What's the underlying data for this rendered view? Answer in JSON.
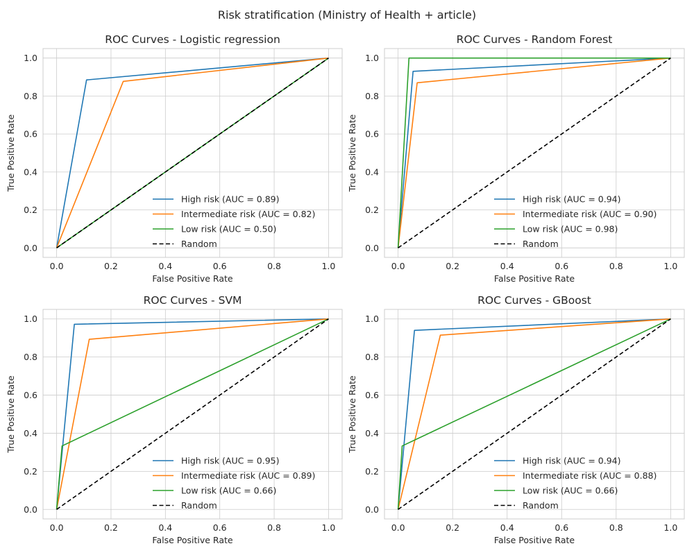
{
  "figure": {
    "suptitle": "Risk stratification (Ministry of Health + article)"
  },
  "colors": {
    "high": "#1f77b4",
    "intermediate": "#ff7f0e",
    "low": "#2ca02c",
    "random": "#000000",
    "grid": "#cccccc",
    "frame": "#cccccc"
  },
  "chart_data": [
    {
      "type": "line",
      "title": "ROC Curves - Logistic regression",
      "xlabel": "False Positive Rate",
      "ylabel": "True Positive Rate",
      "xlim": [
        -0.05,
        1.05
      ],
      "ylim": [
        -0.05,
        1.05
      ],
      "xticks": [
        "0.0",
        "0.2",
        "0.4",
        "0.6",
        "0.8",
        "1.0"
      ],
      "yticks": [
        "0.0",
        "0.2",
        "0.4",
        "0.6",
        "0.8",
        "1.0"
      ],
      "grid": true,
      "legend": "lower right",
      "series": [
        {
          "name": "High risk (AUC = 0.89)",
          "color": "#1f77b4",
          "dash": false,
          "x": [
            0,
            0.11,
            1
          ],
          "y": [
            0,
            0.885,
            1
          ]
        },
        {
          "name": "Intermediate risk (AUC = 0.82)",
          "color": "#ff7f0e",
          "dash": false,
          "x": [
            0,
            0.245,
            1
          ],
          "y": [
            0,
            0.877,
            1
          ]
        },
        {
          "name": "Low risk (AUC = 0.50)",
          "color": "#2ca02c",
          "dash": false,
          "x": [
            0,
            1
          ],
          "y": [
            0,
            1
          ]
        },
        {
          "name": "Random",
          "color": "#000000",
          "dash": true,
          "x": [
            0,
            1
          ],
          "y": [
            0,
            1
          ]
        }
      ]
    },
    {
      "type": "line",
      "title": "ROC Curves - Random Forest",
      "xlabel": "False Positive Rate",
      "ylabel": "True Positive Rate",
      "xlim": [
        -0.05,
        1.05
      ],
      "ylim": [
        -0.05,
        1.05
      ],
      "xticks": [
        "0.0",
        "0.2",
        "0.4",
        "0.6",
        "0.8",
        "1.0"
      ],
      "yticks": [
        "0.0",
        "0.2",
        "0.4",
        "0.6",
        "0.8",
        "1.0"
      ],
      "grid": true,
      "legend": "lower right",
      "series": [
        {
          "name": "High risk (AUC = 0.94)",
          "color": "#1f77b4",
          "dash": false,
          "x": [
            0,
            0.055,
            1
          ],
          "y": [
            0,
            0.93,
            1
          ]
        },
        {
          "name": "Intermediate risk (AUC = 0.90)",
          "color": "#ff7f0e",
          "dash": false,
          "x": [
            0,
            0.07,
            1
          ],
          "y": [
            0,
            0.87,
            1
          ]
        },
        {
          "name": "Low risk (AUC = 0.98)",
          "color": "#2ca02c",
          "dash": false,
          "x": [
            0,
            0.04,
            1
          ],
          "y": [
            0,
            1.0,
            1
          ]
        },
        {
          "name": "Random",
          "color": "#000000",
          "dash": true,
          "x": [
            0,
            1
          ],
          "y": [
            0,
            1
          ]
        }
      ]
    },
    {
      "type": "line",
      "title": "ROC Curves - SVM",
      "xlabel": "False Positive Rate",
      "ylabel": "True Positive Rate",
      "xlim": [
        -0.05,
        1.05
      ],
      "ylim": [
        -0.05,
        1.05
      ],
      "xticks": [
        "0.0",
        "0.2",
        "0.4",
        "0.6",
        "0.8",
        "1.0"
      ],
      "yticks": [
        "0.0",
        "0.2",
        "0.4",
        "0.6",
        "0.8",
        "1.0"
      ],
      "grid": true,
      "legend": "lower right",
      "series": [
        {
          "name": "High risk (AUC = 0.95)",
          "color": "#1f77b4",
          "dash": false,
          "x": [
            0,
            0.065,
            1
          ],
          "y": [
            0,
            0.972,
            1
          ]
        },
        {
          "name": "Intermediate risk (AUC = 0.89)",
          "color": "#ff7f0e",
          "dash": false,
          "x": [
            0,
            0.12,
            1
          ],
          "y": [
            0,
            0.893,
            1
          ]
        },
        {
          "name": "Low risk (AUC = 0.66)",
          "color": "#2ca02c",
          "dash": false,
          "x": [
            0,
            0.02,
            1
          ],
          "y": [
            0,
            0.333,
            1
          ]
        },
        {
          "name": "Random",
          "color": "#000000",
          "dash": true,
          "x": [
            0,
            1
          ],
          "y": [
            0,
            1
          ]
        }
      ]
    },
    {
      "type": "line",
      "title": "ROC Curves - GBoost",
      "xlabel": "False Positive Rate",
      "ylabel": "True Positive Rate",
      "xlim": [
        -0.05,
        1.05
      ],
      "ylim": [
        -0.05,
        1.05
      ],
      "xticks": [
        "0.0",
        "0.2",
        "0.4",
        "0.6",
        "0.8",
        "1.0"
      ],
      "yticks": [
        "0.0",
        "0.2",
        "0.4",
        "0.6",
        "0.8",
        "1.0"
      ],
      "grid": true,
      "legend": "lower right",
      "series": [
        {
          "name": "High risk (AUC = 0.94)",
          "color": "#1f77b4",
          "dash": false,
          "x": [
            0,
            0.06,
            1
          ],
          "y": [
            0,
            0.94,
            1
          ]
        },
        {
          "name": "Intermediate risk (AUC = 0.88)",
          "color": "#ff7f0e",
          "dash": false,
          "x": [
            0,
            0.155,
            1
          ],
          "y": [
            0,
            0.915,
            1
          ]
        },
        {
          "name": "Low risk (AUC = 0.66)",
          "color": "#2ca02c",
          "dash": false,
          "x": [
            0,
            0.015,
            1
          ],
          "y": [
            0,
            0.333,
            1
          ]
        },
        {
          "name": "Random",
          "color": "#000000",
          "dash": true,
          "x": [
            0,
            1
          ],
          "y": [
            0,
            1
          ]
        }
      ]
    }
  ]
}
